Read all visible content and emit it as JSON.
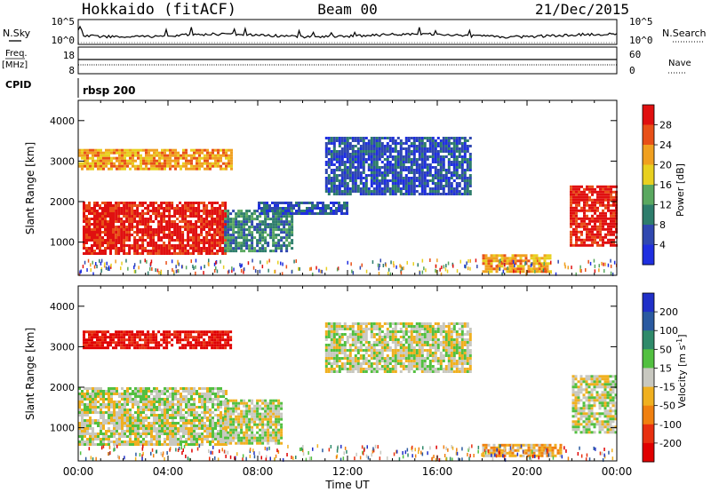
{
  "header": {
    "station": "Hokkaido (fitACF)",
    "beam": "Beam 00",
    "date": "21/Dec/2015"
  },
  "noise_panel": {
    "left_label": "N.Sky",
    "right_label": "N.Search",
    "left_ticks": [
      "10^5",
      "10^0"
    ],
    "right_ticks": [
      "10^5",
      "10^0"
    ]
  },
  "freq_panel": {
    "left_label": "Freq.",
    "left_unit": "[MHz]",
    "left_ticks": [
      "18",
      "8"
    ],
    "right_label": "Nave",
    "right_ticks": [
      "60",
      "0"
    ]
  },
  "cpid": {
    "label": "CPID",
    "value": "rbsp 200"
  },
  "chart_data": [
    {
      "type": "heatmap",
      "name": "power",
      "ylabel": "Slant Range [km]",
      "yticks": [
        1000,
        2000,
        3000,
        4000
      ],
      "ylim": [
        180,
        4500
      ],
      "xlim": [
        "00:00",
        "00:00"
      ],
      "colorbar": {
        "label": "Power [dB]",
        "ticks": [
          4,
          8,
          12,
          16,
          20,
          24,
          28
        ],
        "colors": [
          "#1f2fe0",
          "#3048b0",
          "#2e7d6c",
          "#5aa860",
          "#e8d020",
          "#f0a020",
          "#e85018",
          "#e01010"
        ]
      },
      "regions": [
        {
          "t0": 0.2,
          "t1": 6.6,
          "r0": 700,
          "r1": 2000,
          "level": 7
        },
        {
          "t0": 0.0,
          "t1": 6.8,
          "r0": 2800,
          "r1": 3300,
          "level": 5
        },
        {
          "t0": 6.5,
          "t1": 9.5,
          "r0": 800,
          "r1": 1800,
          "level": 2
        },
        {
          "t0": 8.0,
          "t1": 12.0,
          "r0": 1700,
          "r1": 2000,
          "level": 1
        },
        {
          "t0": 11.0,
          "t1": 17.5,
          "r0": 2200,
          "r1": 3600,
          "level": 1
        },
        {
          "t0": 18.0,
          "t1": 21.0,
          "r0": 300,
          "r1": 700,
          "level": 5
        },
        {
          "t0": 21.9,
          "t1": 24.0,
          "r0": 900,
          "r1": 2400,
          "level": 7
        }
      ]
    },
    {
      "type": "heatmap",
      "name": "velocity",
      "ylabel": "Slant Range [km]",
      "xlabel": "Time UT",
      "xticks": [
        "00:00",
        "04:00",
        "08:00",
        "12:00",
        "16:00",
        "20:00",
        "00:00"
      ],
      "yticks": [
        1000,
        2000,
        3000,
        4000
      ],
      "ylim": [
        180,
        4500
      ],
      "colorbar": {
        "label": "Velocity [m s",
        "label_sup": "-1",
        "label_end": "]",
        "ticks": [
          200,
          100,
          50,
          15,
          -15,
          -50,
          -100,
          -200
        ],
        "colors": [
          "#2030c8",
          "#2a5aa0",
          "#2f8a6a",
          "#52c040",
          "#c8c8c0",
          "#f0b020",
          "#f08010",
          "#e83010",
          "#e00000"
        ]
      },
      "regions": [
        {
          "t0": 0.0,
          "t1": 6.6,
          "r0": 600,
          "r1": 2000,
          "level": 4
        },
        {
          "t0": 0.2,
          "t1": 6.8,
          "r0": 3000,
          "r1": 3400,
          "level": 8
        },
        {
          "t0": 6.5,
          "t1": 9.0,
          "r0": 600,
          "r1": 1700,
          "level": 4
        },
        {
          "t0": 11.0,
          "t1": 17.5,
          "r0": 2400,
          "r1": 3600,
          "level": 4
        },
        {
          "t0": 18.0,
          "t1": 21.5,
          "r0": 300,
          "r1": 600,
          "level": 5
        },
        {
          "t0": 22.0,
          "t1": 24.0,
          "r0": 900,
          "r1": 2300,
          "level": 4
        }
      ]
    }
  ]
}
